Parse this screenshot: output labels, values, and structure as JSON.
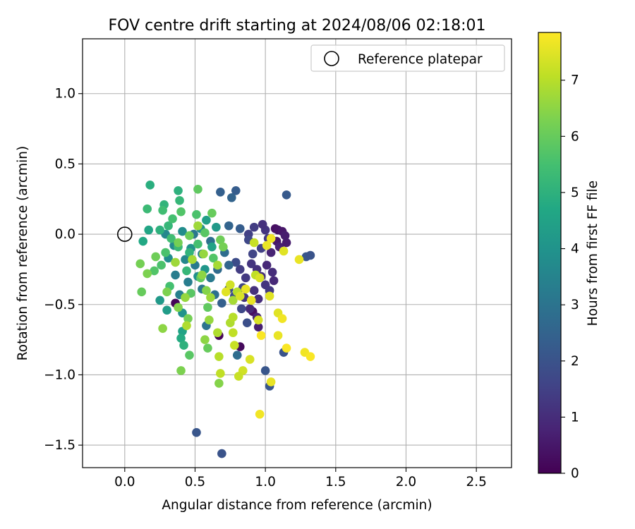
{
  "chart_data": {
    "type": "scatter",
    "title": "FOV centre drift starting at 2024/08/06 02:18:01",
    "xlabel": "Angular distance from reference (arcmin)",
    "ylabel": "Rotation from reference (arcmin)",
    "xlim": [
      -0.3,
      2.75
    ],
    "ylim": [
      -1.66,
      1.39
    ],
    "x_ticks": [
      "0.0",
      "0.5",
      "1.0",
      "1.5",
      "2.0",
      "2.5"
    ],
    "y_ticks": [
      "1.0",
      "0.5",
      "0.0",
      "−0.5",
      "−1.0",
      "−1.5"
    ],
    "grid": true,
    "legend": {
      "placement": "top-right",
      "entries": [
        "Reference platepar"
      ]
    },
    "reference_point": {
      "x": 0.0,
      "y": 0.0,
      "label": "Reference platepar"
    },
    "colorbar": {
      "label": "Hours from first FF file",
      "range": [
        0,
        7.85
      ],
      "ticks": [
        "0",
        "1",
        "2",
        "3",
        "4",
        "5",
        "6",
        "7"
      ],
      "colormap": "viridis"
    },
    "points": [
      {
        "x": 0.36,
        "y": -0.49,
        "t": 0.1
      },
      {
        "x": 0.67,
        "y": -0.72,
        "t": 0.1
      },
      {
        "x": 0.82,
        "y": -0.8,
        "t": 0.2
      },
      {
        "x": 0.91,
        "y": -0.55,
        "t": 0.3
      },
      {
        "x": 1.07,
        "y": 0.04,
        "t": 0.3
      },
      {
        "x": 1.09,
        "y": 0.03,
        "t": 0.4
      },
      {
        "x": 1.12,
        "y": 0.02,
        "t": 0.5
      },
      {
        "x": 1.14,
        "y": -0.01,
        "t": 0.6
      },
      {
        "x": 1.08,
        "y": -0.05,
        "t": 0.5
      },
      {
        "x": 1.1,
        "y": -0.09,
        "t": 0.7
      },
      {
        "x": 1.04,
        "y": -0.13,
        "t": 0.8
      },
      {
        "x": 1.15,
        "y": -0.06,
        "t": 0.6
      },
      {
        "x": 1.01,
        "y": -0.22,
        "t": 0.9
      },
      {
        "x": 1.05,
        "y": -0.27,
        "t": 1.0
      },
      {
        "x": 0.94,
        "y": -0.25,
        "t": 1.1
      },
      {
        "x": 0.9,
        "y": -0.21,
        "t": 1.2
      },
      {
        "x": 0.97,
        "y": -0.3,
        "t": 1.0
      },
      {
        "x": 1.06,
        "y": -0.33,
        "t": 0.9
      },
      {
        "x": 1.0,
        "y": -0.36,
        "t": 1.2
      },
      {
        "x": 0.86,
        "y": -0.31,
        "t": 1.3
      },
      {
        "x": 0.82,
        "y": -0.25,
        "t": 1.4
      },
      {
        "x": 0.92,
        "y": -0.4,
        "t": 1.1
      },
      {
        "x": 1.03,
        "y": -0.4,
        "t": 1.3
      },
      {
        "x": 0.95,
        "y": -0.46,
        "t": 1.0
      },
      {
        "x": 0.89,
        "y": -0.53,
        "t": 0.9
      },
      {
        "x": 0.94,
        "y": -0.59,
        "t": 0.8
      },
      {
        "x": 0.95,
        "y": -0.66,
        "t": 0.7
      },
      {
        "x": 0.85,
        "y": -0.45,
        "t": 1.2
      },
      {
        "x": 1.0,
        "y": 0.03,
        "t": 1.2
      },
      {
        "x": 0.98,
        "y": 0.07,
        "t": 1.1
      },
      {
        "x": 0.92,
        "y": 0.05,
        "t": 1.4
      },
      {
        "x": 0.88,
        "y": 0.0,
        "t": 1.5
      },
      {
        "x": 1.02,
        "y": -0.03,
        "t": 1.3
      },
      {
        "x": 0.97,
        "y": -0.1,
        "t": 1.5
      },
      {
        "x": 0.88,
        "y": -0.04,
        "t": 1.7
      },
      {
        "x": 0.91,
        "y": -0.14,
        "t": 1.6
      },
      {
        "x": 0.79,
        "y": -0.2,
        "t": 1.8
      },
      {
        "x": 0.84,
        "y": -0.38,
        "t": 1.6
      },
      {
        "x": 0.78,
        "y": -0.44,
        "t": 1.8
      },
      {
        "x": 0.74,
        "y": -0.39,
        "t": 1.9
      },
      {
        "x": 0.83,
        "y": -0.53,
        "t": 1.7
      },
      {
        "x": 0.87,
        "y": -0.63,
        "t": 1.9
      },
      {
        "x": 1.15,
        "y": 0.28,
        "t": 2.2
      },
      {
        "x": 1.29,
        "y": -0.16,
        "t": 2.1
      },
      {
        "x": 1.32,
        "y": -0.15,
        "t": 2.0
      },
      {
        "x": 1.13,
        "y": -0.84,
        "t": 2.0
      },
      {
        "x": 1.0,
        "y": -0.97,
        "t": 2.1
      },
      {
        "x": 1.03,
        "y": -1.08,
        "t": 2.1
      },
      {
        "x": 0.51,
        "y": -1.41,
        "t": 2.1
      },
      {
        "x": 0.69,
        "y": -1.56,
        "t": 2.0
      },
      {
        "x": 0.68,
        "y": 0.3,
        "t": 2.4
      },
      {
        "x": 0.79,
        "y": 0.31,
        "t": 2.3
      },
      {
        "x": 0.76,
        "y": 0.26,
        "t": 2.5
      },
      {
        "x": 0.82,
        "y": 0.04,
        "t": 2.3
      },
      {
        "x": 0.74,
        "y": 0.06,
        "t": 2.5
      },
      {
        "x": 0.71,
        "y": -0.13,
        "t": 2.8
      },
      {
        "x": 0.74,
        "y": -0.22,
        "t": 2.6
      },
      {
        "x": 0.61,
        "y": -0.05,
        "t": 2.9
      },
      {
        "x": 0.66,
        "y": -0.25,
        "t": 2.7
      },
      {
        "x": 0.69,
        "y": -0.49,
        "t": 2.4
      },
      {
        "x": 0.8,
        "y": -0.86,
        "t": 2.8
      },
      {
        "x": 0.58,
        "y": -0.65,
        "t": 3.0
      },
      {
        "x": 0.55,
        "y": -0.39,
        "t": 3.1
      },
      {
        "x": 0.5,
        "y": -0.22,
        "t": 3.2
      },
      {
        "x": 0.45,
        "y": -0.34,
        "t": 3.3
      },
      {
        "x": 0.39,
        "y": -0.43,
        "t": 3.4
      },
      {
        "x": 0.36,
        "y": -0.29,
        "t": 3.3
      },
      {
        "x": 0.49,
        "y": 0.0,
        "t": 3.1
      },
      {
        "x": 0.55,
        "y": -0.14,
        "t": 3.4
      },
      {
        "x": 0.61,
        "y": -0.31,
        "t": 3.2
      },
      {
        "x": 0.64,
        "y": -0.43,
        "t": 2.9
      },
      {
        "x": 0.43,
        "y": -0.18,
        "t": 3.6
      },
      {
        "x": 0.35,
        "y": -0.08,
        "t": 3.7
      },
      {
        "x": 0.29,
        "y": 0.0,
        "t": 3.6
      },
      {
        "x": 0.41,
        "y": 0.02,
        "t": 3.8
      },
      {
        "x": 0.54,
        "y": 0.04,
        "t": 3.9
      },
      {
        "x": 0.31,
        "y": -0.17,
        "t": 3.8
      },
      {
        "x": 0.47,
        "y": -0.1,
        "t": 4.0
      },
      {
        "x": 0.57,
        "y": -0.25,
        "t": 4.1
      },
      {
        "x": 0.52,
        "y": -0.3,
        "t": 3.9
      },
      {
        "x": 0.25,
        "y": -0.47,
        "t": 4.2
      },
      {
        "x": 0.3,
        "y": -0.54,
        "t": 4.3
      },
      {
        "x": 0.41,
        "y": -0.56,
        "t": 4.0
      },
      {
        "x": 0.65,
        "y": 0.05,
        "t": 4.2
      },
      {
        "x": 0.58,
        "y": 0.1,
        "t": 4.4
      },
      {
        "x": 0.62,
        "y": -0.09,
        "t": 4.5
      },
      {
        "x": 0.41,
        "y": -0.69,
        "t": 4.5
      },
      {
        "x": 0.4,
        "y": -0.74,
        "t": 4.8
      },
      {
        "x": 0.42,
        "y": -0.79,
        "t": 5.0
      },
      {
        "x": 0.17,
        "y": 0.03,
        "t": 4.6
      },
      {
        "x": 0.18,
        "y": 0.35,
        "t": 4.9
      },
      {
        "x": 0.38,
        "y": 0.31,
        "t": 5.0
      },
      {
        "x": 0.39,
        "y": 0.24,
        "t": 5.2
      },
      {
        "x": 0.16,
        "y": 0.18,
        "t": 5.3
      },
      {
        "x": 0.28,
        "y": 0.21,
        "t": 5.1
      },
      {
        "x": 0.27,
        "y": 0.17,
        "t": 5.4
      },
      {
        "x": 0.13,
        "y": -0.05,
        "t": 4.7
      },
      {
        "x": 0.25,
        "y": 0.03,
        "t": 5.0
      },
      {
        "x": 0.31,
        "y": 0.06,
        "t": 5.2
      },
      {
        "x": 0.33,
        "y": -0.03,
        "t": 5.4
      },
      {
        "x": 0.38,
        "y": -0.09,
        "t": 5.3
      },
      {
        "x": 0.46,
        "y": -0.13,
        "t": 5.1
      },
      {
        "x": 0.52,
        "y": -0.07,
        "t": 5.5
      },
      {
        "x": 0.44,
        "y": -0.26,
        "t": 5.2
      },
      {
        "x": 0.32,
        "y": -0.37,
        "t": 5.5
      },
      {
        "x": 0.26,
        "y": -0.22,
        "t": 5.6
      },
      {
        "x": 0.21,
        "y": -0.26,
        "t": 5.7
      },
      {
        "x": 0.29,
        "y": -0.13,
        "t": 5.6
      },
      {
        "x": 0.4,
        "y": 0.16,
        "t": 5.7
      },
      {
        "x": 0.34,
        "y": 0.11,
        "t": 5.5
      },
      {
        "x": 0.51,
        "y": 0.14,
        "t": 5.6
      },
      {
        "x": 0.57,
        "y": 0.01,
        "t": 5.8
      },
      {
        "x": 0.63,
        "y": -0.17,
        "t": 5.7
      },
      {
        "x": 0.54,
        "y": -0.31,
        "t": 5.9
      },
      {
        "x": 0.47,
        "y": -0.42,
        "t": 5.8
      },
      {
        "x": 0.59,
        "y": -0.52,
        "t": 5.9
      },
      {
        "x": 0.46,
        "y": -0.86,
        "t": 5.8
      },
      {
        "x": 0.59,
        "y": -0.81,
        "t": 6.0
      },
      {
        "x": 0.52,
        "y": 0.32,
        "t": 5.9
      },
      {
        "x": 0.62,
        "y": 0.15,
        "t": 6.0
      },
      {
        "x": 0.68,
        "y": -0.04,
        "t": 6.1
      },
      {
        "x": 0.7,
        "y": -0.09,
        "t": 6.2
      },
      {
        "x": 0.46,
        "y": -0.01,
        "t": 6.1
      },
      {
        "x": 0.38,
        "y": -0.06,
        "t": 6.2
      },
      {
        "x": 0.22,
        "y": -0.16,
        "t": 6.1
      },
      {
        "x": 0.16,
        "y": -0.28,
        "t": 6.3
      },
      {
        "x": 0.11,
        "y": -0.21,
        "t": 6.2
      },
      {
        "x": 0.12,
        "y": -0.41,
        "t": 6.0
      },
      {
        "x": 0.3,
        "y": -0.41,
        "t": 6.3
      },
      {
        "x": 0.38,
        "y": -0.52,
        "t": 6.4
      },
      {
        "x": 0.45,
        "y": -0.6,
        "t": 6.2
      },
      {
        "x": 0.58,
        "y": -0.4,
        "t": 6.4
      },
      {
        "x": 0.57,
        "y": -0.75,
        "t": 6.5
      },
      {
        "x": 0.4,
        "y": -0.97,
        "t": 6.3
      },
      {
        "x": 0.67,
        "y": -1.06,
        "t": 6.4
      },
      {
        "x": 0.27,
        "y": -0.67,
        "t": 6.5
      },
      {
        "x": 0.6,
        "y": -0.61,
        "t": 6.6
      },
      {
        "x": 0.55,
        "y": -0.29,
        "t": 6.5
      },
      {
        "x": 0.43,
        "y": -0.45,
        "t": 6.6
      },
      {
        "x": 0.36,
        "y": -0.2,
        "t": 6.7
      },
      {
        "x": 0.48,
        "y": -0.18,
        "t": 6.8
      },
      {
        "x": 0.52,
        "y": 0.06,
        "t": 6.7
      },
      {
        "x": 0.56,
        "y": -0.14,
        "t": 6.6
      },
      {
        "x": 0.66,
        "y": -0.22,
        "t": 6.8
      },
      {
        "x": 0.66,
        "y": -0.7,
        "t": 6.9
      },
      {
        "x": 0.67,
        "y": -0.87,
        "t": 7.0
      },
      {
        "x": 0.68,
        "y": -0.99,
        "t": 7.1
      },
      {
        "x": 0.75,
        "y": -0.63,
        "t": 6.9
      },
      {
        "x": 0.77,
        "y": -0.47,
        "t": 6.8
      },
      {
        "x": 0.61,
        "y": -0.45,
        "t": 6.7
      },
      {
        "x": 0.44,
        "y": -0.65,
        "t": 6.9
      },
      {
        "x": 0.8,
        "y": -0.41,
        "t": 7.0
      },
      {
        "x": 0.93,
        "y": -0.29,
        "t": 7.1
      },
      {
        "x": 0.92,
        "y": -0.06,
        "t": 7.2
      },
      {
        "x": 0.77,
        "y": -0.59,
        "t": 7.0
      },
      {
        "x": 0.78,
        "y": -0.79,
        "t": 7.2
      },
      {
        "x": 0.77,
        "y": -0.7,
        "t": 7.1
      },
      {
        "x": 0.84,
        "y": -0.97,
        "t": 7.3
      },
      {
        "x": 0.81,
        "y": -1.01,
        "t": 7.2
      },
      {
        "x": 0.89,
        "y": -0.89,
        "t": 7.4
      },
      {
        "x": 0.75,
        "y": -0.36,
        "t": 7.3
      },
      {
        "x": 0.82,
        "y": -0.44,
        "t": 7.4
      },
      {
        "x": 0.72,
        "y": -0.41,
        "t": 7.5
      },
      {
        "x": 0.9,
        "y": -0.47,
        "t": 7.6
      },
      {
        "x": 0.95,
        "y": -0.61,
        "t": 7.4
      },
      {
        "x": 0.96,
        "y": -1.28,
        "t": 7.7
      },
      {
        "x": 1.04,
        "y": -1.05,
        "t": 7.6
      },
      {
        "x": 1.09,
        "y": -0.56,
        "t": 7.5
      },
      {
        "x": 1.12,
        "y": -0.6,
        "t": 7.7
      },
      {
        "x": 1.09,
        "y": -0.72,
        "t": 7.6
      },
      {
        "x": 1.15,
        "y": -0.81,
        "t": 7.8
      },
      {
        "x": 1.28,
        "y": -0.84,
        "t": 7.7
      },
      {
        "x": 1.32,
        "y": -0.87,
        "t": 7.8
      },
      {
        "x": 1.24,
        "y": -0.18,
        "t": 7.6
      },
      {
        "x": 1.13,
        "y": -0.12,
        "t": 7.5
      },
      {
        "x": 1.01,
        "y": -0.08,
        "t": 7.6
      },
      {
        "x": 1.04,
        "y": -0.03,
        "t": 7.7
      },
      {
        "x": 0.96,
        "y": -0.31,
        "t": 7.4
      },
      {
        "x": 0.97,
        "y": -0.72,
        "t": 7.8
      },
      {
        "x": 1.03,
        "y": -0.44,
        "t": 7.5
      },
      {
        "x": 0.86,
        "y": -0.39,
        "t": 7.6
      }
    ]
  }
}
